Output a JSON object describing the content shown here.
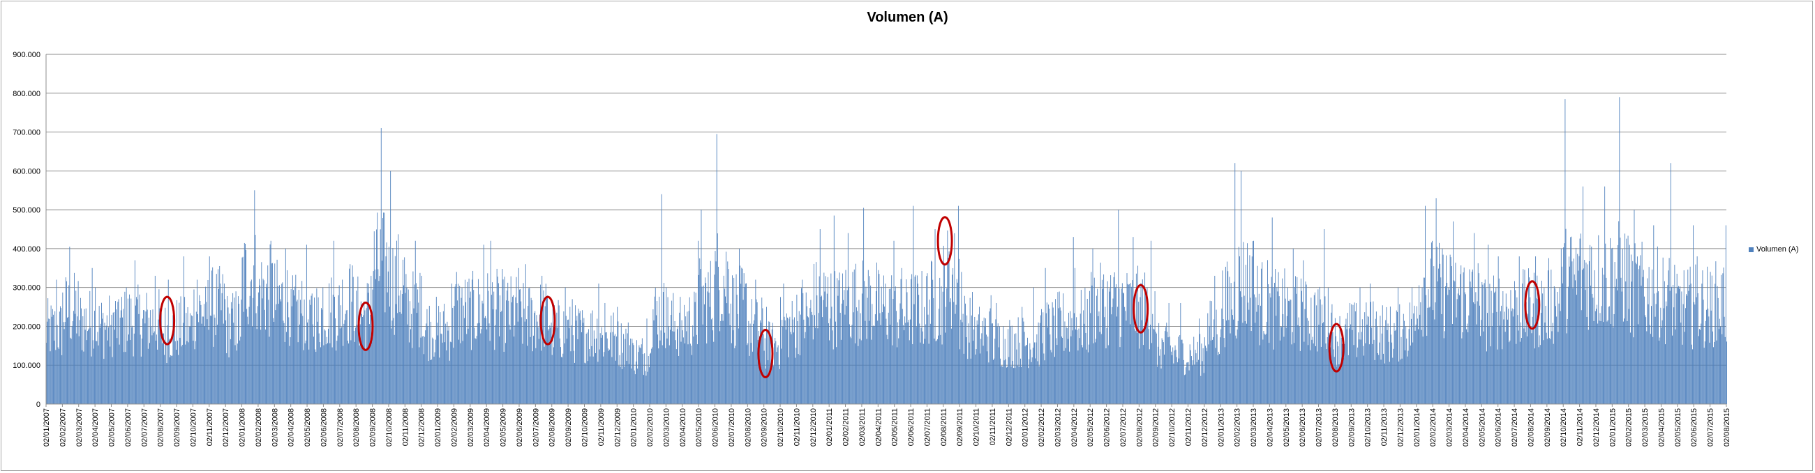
{
  "chart_data": {
    "type": "bar",
    "title": "Volumen (A)",
    "xlabel": "",
    "ylabel": "",
    "ylim": [
      0,
      900000
    ],
    "y_ticks": [
      "0",
      "100.000",
      "200.000",
      "300.000",
      "400.000",
      "500.000",
      "600.000",
      "700.000",
      "800.000",
      "900.000"
    ],
    "x_tick_labels": [
      "02/01/2007",
      "02/02/2007",
      "02/03/2007",
      "02/04/2007",
      "02/05/2007",
      "02/06/2007",
      "02/07/2007",
      "02/08/2007",
      "02/09/2007",
      "02/10/2007",
      "02/11/2007",
      "02/12/2007",
      "02/01/2008",
      "02/02/2008",
      "02/03/2008",
      "02/04/2008",
      "02/05/2008",
      "02/06/2008",
      "02/07/2008",
      "02/08/2008",
      "02/09/2008",
      "02/10/2008",
      "02/11/2008",
      "02/12/2008",
      "02/01/2009",
      "02/02/2009",
      "02/03/2009",
      "02/04/2009",
      "02/05/2009",
      "02/06/2009",
      "02/07/2009",
      "02/08/2009",
      "02/09/2009",
      "02/10/2009",
      "02/11/2009",
      "02/12/2009",
      "02/01/2010",
      "02/02/2010",
      "02/03/2010",
      "02/04/2010",
      "02/05/2010",
      "02/06/2010",
      "02/07/2010",
      "02/08/2010",
      "02/09/2010",
      "02/10/2010",
      "02/11/2010",
      "02/12/2010",
      "02/01/2011",
      "02/02/2011",
      "02/03/2011",
      "02/04/2011",
      "02/05/2011",
      "02/06/2011",
      "02/07/2011",
      "02/08/2011",
      "02/09/2011",
      "02/10/2011",
      "02/11/2011",
      "02/12/2011",
      "02/01/2012",
      "02/02/2012",
      "02/03/2012",
      "02/04/2012",
      "02/05/2012",
      "02/06/2012",
      "02/07/2012",
      "02/08/2012",
      "02/09/2012",
      "02/10/2012",
      "02/11/2012",
      "02/12/2012",
      "02/01/2013",
      "02/02/2013",
      "02/03/2013",
      "02/04/2013",
      "02/05/2013",
      "02/06/2013",
      "02/07/2013",
      "02/08/2013",
      "02/09/2013",
      "02/10/2013",
      "02/11/2013",
      "02/12/2013",
      "02/01/2014",
      "02/02/2014",
      "02/03/2014",
      "02/04/2014",
      "02/05/2014",
      "02/06/2014",
      "02/07/2014",
      "02/08/2014",
      "02/09/2014",
      "02/10/2014",
      "02/11/2014",
      "02/12/2014",
      "02/01/2015",
      "02/02/2015",
      "02/03/2015",
      "02/04/2015",
      "02/05/2015",
      "02/06/2015",
      "02/07/2015",
      "02/08/2015"
    ],
    "series": [
      {
        "name": "Volumen (A)",
        "color": "#4f81bd",
        "monthly_avg": [
          195000,
          245000,
          215000,
          205000,
          215000,
          220000,
          215000,
          190000,
          200000,
          245000,
          255000,
          210000,
          330000,
          295000,
          270000,
          240000,
          235000,
          245000,
          265000,
          240000,
          360000,
          320000,
          250000,
          200000,
          195000,
          245000,
          245000,
          250000,
          240000,
          225000,
          230000,
          195000,
          185000,
          190000,
          175000,
          160000,
          130000,
          235000,
          210000,
          215000,
          275000,
          330000,
          255000,
          200000,
          155000,
          200000,
          225000,
          270000,
          255000,
          270000,
          270000,
          255000,
          235000,
          250000,
          270000,
          330000,
          210000,
          185000,
          165000,
          165000,
          165000,
          195000,
          210000,
          215000,
          260000,
          260000,
          255000,
          250000,
          150000,
          135000,
          130000,
          195000,
          265000,
          320000,
          270000,
          250000,
          240000,
          230000,
          220000,
          175000,
          190000,
          195000,
          185000,
          200000,
          310000,
          300000,
          285000,
          275000,
          240000,
          250000,
          250000,
          250000,
          270000,
          330000,
          340000,
          330000,
          340000,
          300000,
          290000,
          280000,
          255000,
          260000,
          265000,
          250000
        ],
        "monthly_peak": [
          320000,
          405000,
          350000,
          300000,
          300000,
          370000,
          330000,
          320000,
          380000,
          320000,
          380000,
          290000,
          550000,
          420000,
          400000,
          410000,
          300000,
          420000,
          360000,
          330000,
          710000,
          600000,
          420000,
          330000,
          310000,
          340000,
          410000,
          420000,
          350000,
          360000,
          330000,
          300000,
          270000,
          310000,
          260000,
          250000,
          220000,
          540000,
          300000,
          420000,
          500000,
          695000,
          400000,
          320000,
          250000,
          310000,
          320000,
          450000,
          485000,
          440000,
          505000,
          420000,
          350000,
          510000,
          450000,
          510000,
          340000,
          280000,
          260000,
          250000,
          300000,
          350000,
          430000,
          350000,
          400000,
          500000,
          430000,
          420000,
          260000,
          260000,
          220000,
          330000,
          620000,
          600000,
          420000,
          480000,
          400000,
          370000,
          450000,
          260000,
          300000,
          310000,
          300000,
          300000,
          510000,
          530000,
          470000,
          440000,
          410000,
          380000,
          380000,
          380000,
          400000,
          785000,
          560000,
          560000,
          790000,
          500000,
          460000,
          620000,
          460000,
          380000,
          460000,
          380000
        ]
      }
    ],
    "annotations": [
      {
        "shape": "ellipse",
        "color": "#c00000",
        "date": "15/08/2007",
        "y": 215000
      },
      {
        "shape": "ellipse",
        "color": "#c00000",
        "date": "20/08/2008",
        "y": 200000
      },
      {
        "shape": "ellipse",
        "color": "#c00000",
        "date": "25/07/2009",
        "y": 215000
      },
      {
        "shape": "ellipse",
        "color": "#c00000",
        "date": "05/09/2010",
        "y": 130000
      },
      {
        "shape": "ellipse",
        "color": "#c00000",
        "date": "05/08/2011",
        "y": 420000
      },
      {
        "shape": "ellipse",
        "color": "#c00000",
        "date": "05/08/2012",
        "y": 245000
      },
      {
        "shape": "ellipse",
        "color": "#c00000",
        "date": "05/08/2013",
        "y": 145000
      },
      {
        "shape": "ellipse",
        "color": "#c00000",
        "date": "05/08/2014",
        "y": 255000
      }
    ],
    "grid": true,
    "legend": {
      "position": "right",
      "entries": [
        "Volumen (A)"
      ]
    }
  }
}
